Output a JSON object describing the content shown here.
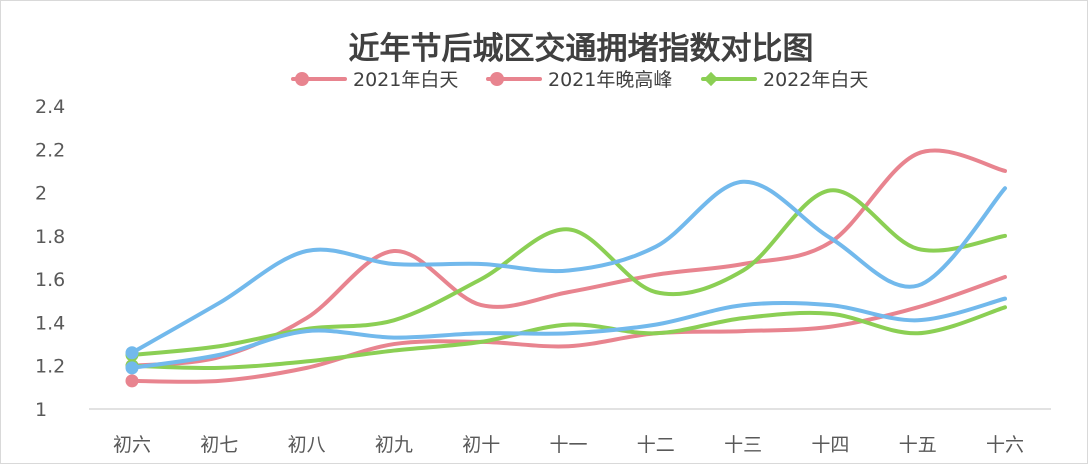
{
  "chart_data": {
    "type": "line",
    "title": "近年节后城区交通拥堵指数对比图",
    "xlabel": "",
    "ylabel": "",
    "categories": [
      "初六",
      "初七",
      "初八",
      "初九",
      "初十",
      "十一",
      "十二",
      "十三",
      "十四",
      "十五",
      "十六"
    ],
    "y_ticks": [
      "1",
      "1.2",
      "1.4",
      "1.6",
      "1.8",
      "2",
      "2.2",
      "2.4"
    ],
    "ylim": [
      1,
      2.4
    ],
    "grid": false,
    "legend_position": "top",
    "legend": [
      {
        "label": "2021年白天",
        "color": "#e8848f",
        "marker": "circle"
      },
      {
        "label": "2021年晚高峰",
        "color": "#e8848f",
        "marker": "circle"
      },
      {
        "label": "2022年白天",
        "color": "#8bcf54",
        "marker": "diamond"
      }
    ],
    "series": [
      {
        "name": "2021年白天",
        "color": "#e8848f",
        "values": [
          1.13,
          1.13,
          1.19,
          1.3,
          1.31,
          1.29,
          1.35,
          1.36,
          1.38,
          1.47,
          1.61
        ]
      },
      {
        "name": "2021年晚高峰",
        "color": "#e8848f",
        "values": [
          1.2,
          1.24,
          1.42,
          1.73,
          1.48,
          1.54,
          1.62,
          1.67,
          1.77,
          2.18,
          2.1
        ]
      },
      {
        "name": "2022年白天",
        "color": "#8bcf54",
        "values": [
          1.25,
          1.29,
          1.37,
          1.41,
          1.6,
          1.83,
          1.54,
          1.64,
          2.01,
          1.74,
          1.8
        ]
      },
      {
        "color": "#8bcf54",
        "values": [
          1.2,
          1.19,
          1.22,
          1.27,
          1.31,
          1.39,
          1.35,
          1.42,
          1.44,
          1.35,
          1.47
        ]
      },
      {
        "color": "#72b9ec",
        "values": [
          1.26,
          1.49,
          1.73,
          1.67,
          1.67,
          1.64,
          1.75,
          2.05,
          1.79,
          1.57,
          2.02
        ]
      },
      {
        "color": "#72b9ec",
        "values": [
          1.19,
          1.25,
          1.36,
          1.33,
          1.35,
          1.35,
          1.39,
          1.48,
          1.48,
          1.41,
          1.51
        ]
      }
    ]
  }
}
